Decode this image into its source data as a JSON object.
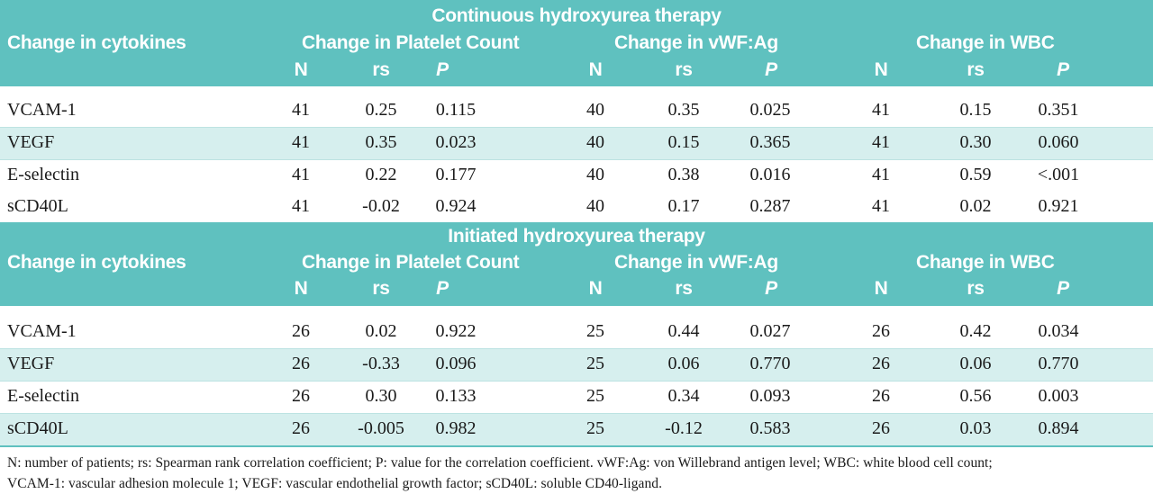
{
  "columns": {
    "label": "Change in cytokines",
    "groups": [
      "Change in Platelet Count",
      "Change in vWF:Ag",
      "Change in WBC"
    ],
    "sub": [
      "N",
      "rs",
      "P"
    ]
  },
  "sections": [
    {
      "title": "Continuous hydroxyurea therapy",
      "rows": [
        {
          "name": "VCAM-1",
          "v": [
            "41",
            "0.25",
            "0.115",
            "40",
            "0.35",
            "0.025",
            "41",
            "0.15",
            "0.351"
          ]
        },
        {
          "name": "VEGF",
          "v": [
            "41",
            "0.35",
            "0.023",
            "40",
            "0.15",
            "0.365",
            "41",
            "0.30",
            "0.060"
          ]
        },
        {
          "name": "E-selectin",
          "v": [
            "41",
            "0.22",
            "0.177",
            "40",
            "0.38",
            "0.016",
            "41",
            "0.59",
            "<.001"
          ]
        },
        {
          "name": "sCD40L",
          "v": [
            "41",
            "-0.02",
            "0.924",
            "40",
            "0.17",
            "0.287",
            "41",
            "0.02",
            "0.921"
          ]
        }
      ]
    },
    {
      "title": "Initiated hydroxyurea therapy",
      "rows": [
        {
          "name": "VCAM-1",
          "v": [
            "26",
            "0.02",
            "0.922",
            "25",
            "0.44",
            "0.027",
            "26",
            "0.42",
            "0.034"
          ]
        },
        {
          "name": "VEGF",
          "v": [
            "26",
            "-0.33",
            "0.096",
            "25",
            "0.06",
            "0.770",
            "26",
            "0.06",
            "0.770"
          ]
        },
        {
          "name": "E-selectin",
          "v": [
            "26",
            "0.30",
            "0.133",
            "25",
            "0.34",
            "0.093",
            "26",
            "0.56",
            "0.003"
          ]
        },
        {
          "name": "sCD40L",
          "v": [
            "26",
            "-0.005",
            "0.982",
            "25",
            "-0.12",
            "0.583",
            "26",
            "0.03",
            "0.894"
          ]
        }
      ]
    }
  ],
  "footnote": {
    "line1": "N: number of patients; rs: Spearman rank correlation coefficient; P: value for the correlation coefficient. vWF:Ag: von Willebrand antigen level; WBC: white blood cell count;",
    "line2": "VCAM-1: vascular adhesion molecule 1; VEGF: vascular endothelial growth factor; sCD40L: soluble CD40-ligand."
  }
}
